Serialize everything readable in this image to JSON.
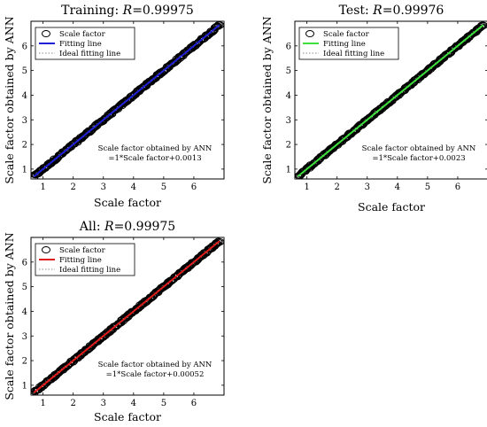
{
  "chart_data": [
    {
      "type": "scatter",
      "title_prefix": "Training: ",
      "title_r_var": "R",
      "title_r_value": "=0.99975",
      "xlabel": "Scale factor",
      "ylabel": "Scale factor obtained by ANN",
      "xlim": [
        0.6,
        7.0
      ],
      "ylim": [
        0.6,
        7.0
      ],
      "xticks": [
        1,
        2,
        3,
        4,
        5,
        6
      ],
      "yticks": [
        1,
        2,
        3,
        4,
        5,
        6
      ],
      "grid": false,
      "legend_position": "top-left",
      "legend": [
        "Scale factor",
        "Fitting line",
        "Ideal fitting line"
      ],
      "fit_color": "#1f1fd6",
      "fit": {
        "slope": 1,
        "intercept": 0.0013
      },
      "equation": [
        "Scale factor obtained by ANN",
        "=1*Scale factor+0.0013"
      ],
      "x_range": [
        0.7,
        6.85
      ],
      "spread": 0.05
    },
    {
      "type": "scatter",
      "title_prefix": "Test: ",
      "title_r_var": "R",
      "title_r_value": "=0.99976",
      "xlabel": "Scale factor",
      "ylabel": "Scale factor obtained by ANN",
      "xlim": [
        0.6,
        7.0
      ],
      "ylim": [
        0.6,
        7.0
      ],
      "xticks": [
        1,
        2,
        3,
        4,
        5,
        6
      ],
      "yticks": [
        1,
        2,
        3,
        4,
        5,
        6
      ],
      "grid": false,
      "legend_position": "top-left",
      "legend": [
        "Scale factor",
        "Fitting line",
        "Ideal fitting line"
      ],
      "fit_color": "#3de03d",
      "fit": {
        "slope": 1,
        "intercept": 0.0023
      },
      "equation": [
        "Scale factor obtained by ANN",
        "=1*Scale factor+0.0023"
      ],
      "x_range": [
        0.7,
        6.85
      ],
      "spread": 0.05
    },
    {
      "type": "scatter",
      "title_prefix": "All: ",
      "title_r_var": "R",
      "title_r_value": "=0.99975",
      "xlabel": "Scale factor",
      "ylabel": "Scale factor obtained by ANN",
      "xlim": [
        0.6,
        7.0
      ],
      "ylim": [
        0.6,
        7.0
      ],
      "xticks": [
        1,
        2,
        3,
        4,
        5,
        6
      ],
      "yticks": [
        1,
        2,
        3,
        4,
        5,
        6
      ],
      "grid": false,
      "legend_position": "top-left",
      "legend": [
        "Scale factor",
        "Fitting line",
        "Ideal fitting line"
      ],
      "fit_color": "#e01b1b",
      "fit": {
        "slope": 1,
        "intercept": 0.00052
      },
      "equation": [
        "Scale factor obtained by ANN",
        "=1*Scale factor+0.00052"
      ],
      "x_range": [
        0.7,
        6.85
      ],
      "spread": 0.05
    }
  ]
}
